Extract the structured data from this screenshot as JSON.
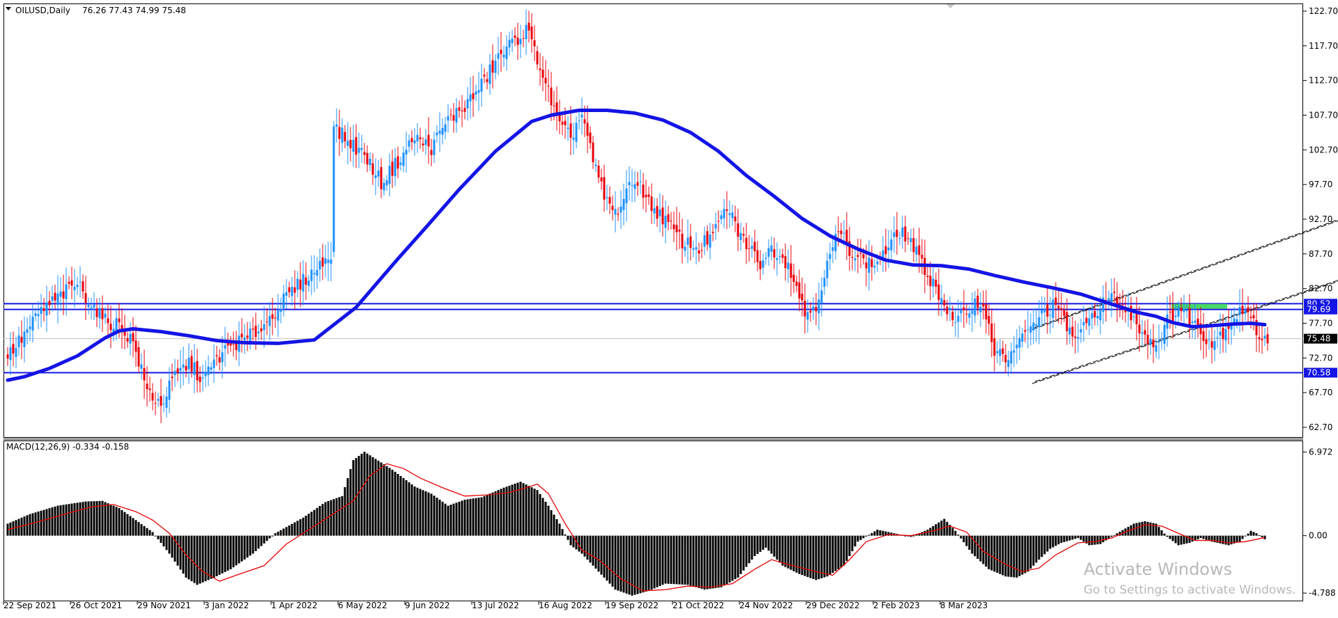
{
  "window": {
    "symbol_label": "OILUSD,Daily",
    "ohlc_label": "76.26 77.43 74.99 75.48"
  },
  "indicator": {
    "label": "MACD(12,26,9) -0.334 -0.158"
  },
  "watermark": {
    "line1": "Activate Windows",
    "line2": "Go to Settings to activate Windows."
  },
  "colors": {
    "candle_up": "#1e90ff",
    "candle_down": "#e8000b",
    "ma_line": "#1414e6",
    "hlines": "#1414e6",
    "macd_hist": "#000000",
    "macd_signal": "#e60000",
    "channel": "#000000",
    "green_zone": "#4cd964",
    "price_tag": "#1414e6",
    "current_tag": "#000000"
  },
  "chart_data": [
    {
      "type": "candlestick",
      "title": "OILUSD,Daily",
      "y_ticks": [
        122.7,
        117.7,
        112.7,
        107.7,
        102.7,
        97.7,
        92.7,
        87.7,
        82.7,
        77.7,
        72.7,
        67.7,
        62.7
      ],
      "y_tick_labels": [
        "122.70",
        "117.70",
        "112.70",
        "107.70",
        "102.70",
        "97.70",
        "92.70",
        "87.70",
        "82.70",
        "77.70",
        "72.70",
        "67.70",
        "62.70"
      ],
      "ylim": [
        61.5,
        123.5
      ],
      "x_tick_labels": [
        "22 Sep 2021",
        "26 Oct 2021",
        "29 Nov 2021",
        "3 Jan 2022",
        "1 Apr 2022",
        "6 May 2022",
        "9 Jun 2022",
        "13 Jul 2022",
        "16 Aug 2022",
        "19 Sep 2022",
        "21 Oct 2022",
        "24 Nov 2022",
        "29 Dec 2022",
        "2 Feb 2023",
        "8 Mar 2023"
      ],
      "horizontal_levels": [
        {
          "value": 80.52,
          "label": "80.52"
        },
        {
          "value": 79.69,
          "label": "79.69"
        },
        {
          "value": 70.58,
          "label": "70.58"
        }
      ],
      "current_price": {
        "value": 75.48,
        "label": "75.48"
      },
      "close_path": [
        [
          0,
          73.0
        ],
        [
          5,
          75.5
        ],
        [
          12,
          79.5
        ],
        [
          20,
          82.0
        ],
        [
          25,
          83.5
        ],
        [
          30,
          80.5
        ],
        [
          35,
          78.0
        ],
        [
          40,
          77.5
        ],
        [
          45,
          75.0
        ],
        [
          50,
          68.0
        ],
        [
          55,
          66.0
        ],
        [
          60,
          70.0
        ],
        [
          65,
          72.0
        ],
        [
          70,
          69.5
        ],
        [
          75,
          72.5
        ],
        [
          80,
          74.5
        ],
        [
          86,
          75.5
        ],
        [
          92,
          77.5
        ],
        [
          98,
          80.5
        ],
        [
          105,
          83.5
        ],
        [
          112,
          86.0
        ],
        [
          116,
          88.0
        ],
        [
          117,
          106.0
        ],
        [
          122,
          104.0
        ],
        [
          128,
          102.0
        ],
        [
          134,
          98.0
        ],
        [
          140,
          101.0
        ],
        [
          146,
          104.5
        ],
        [
          152,
          103.0
        ],
        [
          158,
          107.0
        ],
        [
          164,
          109.0
        ],
        [
          170,
          112.0
        ],
        [
          176,
          116.0
        ],
        [
          182,
          118.5
        ],
        [
          186,
          120.0
        ],
        [
          190,
          116.0
        ],
        [
          194,
          111.0
        ],
        [
          198,
          106.0
        ],
        [
          202,
          104.5
        ],
        [
          206,
          108.0
        ],
        [
          210,
          101.0
        ],
        [
          214,
          96.0
        ],
        [
          218,
          93.5
        ],
        [
          222,
          96.5
        ],
        [
          226,
          98.5
        ],
        [
          230,
          95.0
        ],
        [
          236,
          92.5
        ],
        [
          242,
          89.5
        ],
        [
          248,
          88.5
        ],
        [
          254,
          91.0
        ],
        [
          258,
          94.5
        ],
        [
          262,
          91.0
        ],
        [
          266,
          88.5
        ],
        [
          270,
          86.5
        ],
        [
          274,
          88.5
        ],
        [
          278,
          87.5
        ],
        [
          282,
          84.5
        ],
        [
          286,
          79.0
        ],
        [
          290,
          80.5
        ],
        [
          294,
          86.0
        ],
        [
          298,
          91.0
        ],
        [
          302,
          88.5
        ],
        [
          306,
          87.0
        ],
        [
          310,
          86.0
        ],
        [
          316,
          88.5
        ],
        [
          320,
          91.0
        ],
        [
          324,
          89.5
        ],
        [
          328,
          86.0
        ],
        [
          332,
          83.5
        ],
        [
          336,
          80.5
        ],
        [
          340,
          77.5
        ],
        [
          344,
          79.5
        ],
        [
          348,
          81.0
        ],
        [
          352,
          78.0
        ],
        [
          354,
          73.5
        ],
        [
          358,
          72.5
        ],
        [
          364,
          75.5
        ],
        [
          370,
          78.5
        ],
        [
          376,
          80.5
        ],
        [
          380,
          77.0
        ],
        [
          384,
          75.5
        ],
        [
          390,
          79.5
        ],
        [
          396,
          81.5
        ],
        [
          400,
          80.0
        ],
        [
          404,
          78.5
        ],
        [
          408,
          76.0
        ],
        [
          412,
          74.5
        ],
        [
          416,
          78.0
        ],
        [
          420,
          80.0
        ],
        [
          424,
          78.5
        ],
        [
          428,
          76.5
        ],
        [
          432,
          75.0
        ],
        [
          436,
          76.5
        ],
        [
          440,
          78.5
        ],
        [
          444,
          80.0
        ],
        [
          448,
          76.5
        ],
        [
          452,
          75.5
        ]
      ],
      "moving_average": [
        [
          0,
          69.5
        ],
        [
          6,
          70.0
        ],
        [
          15,
          71.2
        ],
        [
          25,
          73.0
        ],
        [
          35,
          75.6
        ],
        [
          40,
          76.6
        ],
        [
          45,
          76.9
        ],
        [
          55,
          76.5
        ],
        [
          65,
          75.9
        ],
        [
          75,
          75.2
        ],
        [
          85,
          74.9
        ],
        [
          97,
          74.8
        ],
        [
          110,
          75.3
        ],
        [
          125,
          80.0
        ],
        [
          140,
          87.0
        ],
        [
          150,
          91.5
        ],
        [
          162,
          97.0
        ],
        [
          175,
          102.5
        ],
        [
          188,
          106.8
        ],
        [
          195,
          107.7
        ],
        [
          205,
          108.4
        ],
        [
          215,
          108.4
        ],
        [
          225,
          108.0
        ],
        [
          235,
          107.0
        ],
        [
          245,
          105.2
        ],
        [
          255,
          102.5
        ],
        [
          265,
          99.0
        ],
        [
          275,
          96.0
        ],
        [
          285,
          92.8
        ],
        [
          295,
          90.3
        ],
        [
          305,
          88.4
        ],
        [
          315,
          86.8
        ],
        [
          325,
          86.1
        ],
        [
          335,
          86.0
        ],
        [
          345,
          85.5
        ],
        [
          355,
          84.5
        ],
        [
          365,
          83.6
        ],
        [
          375,
          82.8
        ],
        [
          385,
          81.9
        ],
        [
          395,
          80.6
        ],
        [
          405,
          79.3
        ],
        [
          412,
          78.7
        ],
        [
          418,
          77.8
        ],
        [
          425,
          77.2
        ],
        [
          430,
          77.3
        ],
        [
          440,
          77.6
        ],
        [
          446,
          77.7
        ],
        [
          451,
          77.5
        ]
      ],
      "channels": [
        {
          "name": "upper",
          "from": [
            368,
            76.8
          ],
          "to": [
            625,
            113.5
          ]
        },
        {
          "name": "upper",
          "from": [
            369,
            77.1
          ],
          "to": [
            626,
            113.8
          ]
        },
        {
          "name": "lower",
          "from": [
            368,
            69.0
          ],
          "to": [
            625,
            103.5
          ]
        },
        {
          "name": "lower",
          "from": [
            369,
            69.3
          ],
          "to": [
            626,
            103.8
          ]
        }
      ],
      "green_zone": {
        "x_from": 418,
        "x_to": 438,
        "y": 80.1
      }
    },
    {
      "type": "bar",
      "title": "MACD(12,26,9)",
      "main_value": -0.334,
      "signal_value": -0.158,
      "y_ticks": [
        6.972,
        0.0,
        -4.788
      ],
      "y_tick_labels": [
        "6.972",
        "0.00",
        "-4.788"
      ],
      "ylim": [
        -5.3,
        7.7
      ],
      "macd_path": [
        [
          0,
          1.0
        ],
        [
          8,
          1.8
        ],
        [
          18,
          2.5
        ],
        [
          28,
          2.85
        ],
        [
          34,
          2.9
        ],
        [
          40,
          2.3
        ],
        [
          46,
          1.3
        ],
        [
          52,
          0.3
        ],
        [
          58,
          -1.5
        ],
        [
          64,
          -3.5
        ],
        [
          68,
          -4.1
        ],
        [
          74,
          -3.5
        ],
        [
          80,
          -2.8
        ],
        [
          88,
          -1.5
        ],
        [
          96,
          0.2
        ],
        [
          106,
          1.5
        ],
        [
          114,
          2.8
        ],
        [
          120,
          3.3
        ],
        [
          124,
          6.3
        ],
        [
          128,
          7.0
        ],
        [
          132,
          6.4
        ],
        [
          138,
          5.5
        ],
        [
          146,
          4.1
        ],
        [
          152,
          3.5
        ],
        [
          158,
          2.5
        ],
        [
          164,
          3.0
        ],
        [
          170,
          3.2
        ],
        [
          178,
          4.0
        ],
        [
          184,
          4.5
        ],
        [
          190,
          3.8
        ],
        [
          194,
          2.5
        ],
        [
          198,
          1.0
        ],
        [
          202,
          -0.8
        ],
        [
          206,
          -1.5
        ],
        [
          212,
          -3.0
        ],
        [
          218,
          -4.5
        ],
        [
          224,
          -5.0
        ],
        [
          230,
          -4.6
        ],
        [
          236,
          -4.0
        ],
        [
          244,
          -4.1
        ],
        [
          250,
          -4.5
        ],
        [
          256,
          -4.3
        ],
        [
          262,
          -3.5
        ],
        [
          268,
          -1.7
        ],
        [
          272,
          -1.0
        ],
        [
          278,
          -2.5
        ],
        [
          284,
          -3.2
        ],
        [
          290,
          -3.7
        ],
        [
          294,
          -3.4
        ],
        [
          300,
          -2.5
        ],
        [
          305,
          -0.5
        ],
        [
          312,
          0.5
        ],
        [
          318,
          0.2
        ],
        [
          324,
          -0.1
        ],
        [
          330,
          0.5
        ],
        [
          336,
          1.4
        ],
        [
          340,
          0.4
        ],
        [
          346,
          -1.5
        ],
        [
          352,
          -2.8
        ],
        [
          358,
          -3.4
        ],
        [
          362,
          -3.5
        ],
        [
          366,
          -3.0
        ],
        [
          370,
          -2.0
        ],
        [
          374,
          -1.1
        ],
        [
          378,
          -0.6
        ],
        [
          384,
          -0.2
        ],
        [
          388,
          -0.8
        ],
        [
          392,
          -0.7
        ],
        [
          398,
          0.2
        ],
        [
          404,
          1.0
        ],
        [
          408,
          1.2
        ],
        [
          412,
          1.0
        ],
        [
          416,
          -0.1
        ],
        [
          420,
          -0.8
        ],
        [
          424,
          -0.6
        ],
        [
          428,
          -0.2
        ],
        [
          432,
          -0.5
        ],
        [
          438,
          -0.8
        ],
        [
          442,
          -0.5
        ],
        [
          446,
          0.4
        ],
        [
          448,
          0.2
        ],
        [
          451,
          -0.3
        ]
      ],
      "signal_path": [
        [
          0,
          0.5
        ],
        [
          10,
          1.1
        ],
        [
          22,
          1.9
        ],
        [
          30,
          2.4
        ],
        [
          38,
          2.6
        ],
        [
          46,
          2.0
        ],
        [
          52,
          1.3
        ],
        [
          58,
          0.2
        ],
        [
          64,
          -1.6
        ],
        [
          70,
          -3.0
        ],
        [
          76,
          -3.8
        ],
        [
          82,
          -3.3
        ],
        [
          92,
          -2.5
        ],
        [
          100,
          -0.7
        ],
        [
          110,
          0.8
        ],
        [
          118,
          2.0
        ],
        [
          124,
          2.9
        ],
        [
          130,
          5.0
        ],
        [
          136,
          6.0
        ],
        [
          142,
          5.6
        ],
        [
          148,
          4.8
        ],
        [
          156,
          4.0
        ],
        [
          164,
          3.3
        ],
        [
          172,
          3.4
        ],
        [
          180,
          3.6
        ],
        [
          186,
          4.0
        ],
        [
          190,
          4.3
        ],
        [
          194,
          3.5
        ],
        [
          200,
          1.0
        ],
        [
          206,
          -1.2
        ],
        [
          212,
          -2.0
        ],
        [
          220,
          -3.6
        ],
        [
          228,
          -4.6
        ],
        [
          236,
          -4.5
        ],
        [
          244,
          -4.2
        ],
        [
          252,
          -4.3
        ],
        [
          260,
          -4.0
        ],
        [
          268,
          -2.8
        ],
        [
          274,
          -2.0
        ],
        [
          280,
          -2.4
        ],
        [
          290,
          -3.0
        ],
        [
          296,
          -3.3
        ],
        [
          302,
          -2.0
        ],
        [
          308,
          -0.5
        ],
        [
          316,
          0.1
        ],
        [
          324,
          0.0
        ],
        [
          332,
          0.4
        ],
        [
          338,
          0.8
        ],
        [
          344,
          0.3
        ],
        [
          350,
          -1.3
        ],
        [
          358,
          -2.4
        ],
        [
          364,
          -3.0
        ],
        [
          370,
          -2.7
        ],
        [
          376,
          -1.6
        ],
        [
          384,
          -0.6
        ],
        [
          390,
          -0.5
        ],
        [
          396,
          -0.2
        ],
        [
          402,
          0.4
        ],
        [
          408,
          0.9
        ],
        [
          414,
          0.8
        ],
        [
          420,
          0.2
        ],
        [
          426,
          -0.4
        ],
        [
          432,
          -0.4
        ],
        [
          438,
          -0.6
        ],
        [
          444,
          -0.5
        ],
        [
          451,
          -0.16
        ]
      ]
    }
  ]
}
